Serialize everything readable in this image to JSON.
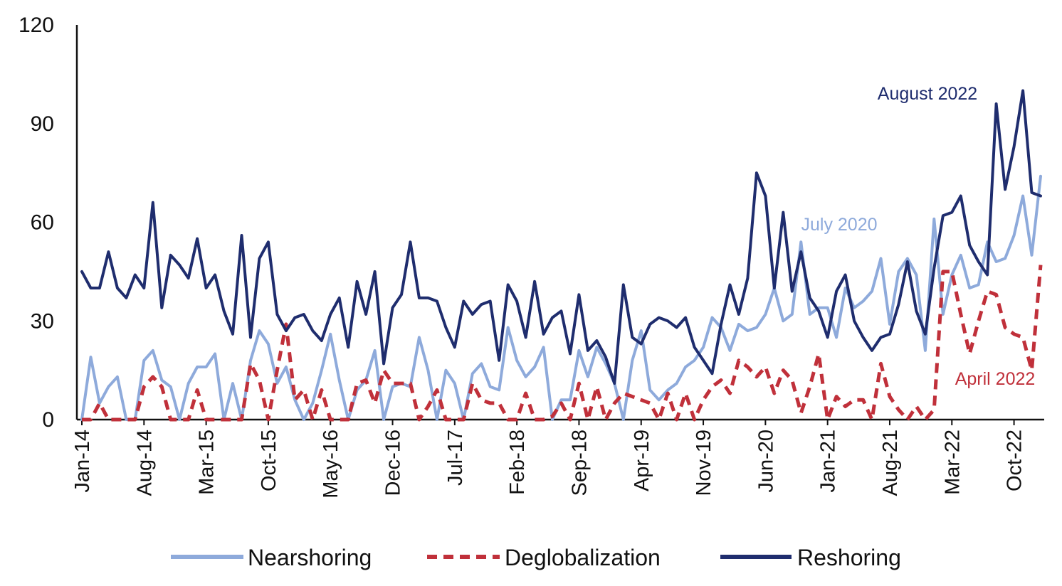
{
  "chart_data": {
    "type": "line",
    "title": "",
    "xlabel": "",
    "ylabel": "",
    "ylim": [
      0,
      120
    ],
    "yticks": [
      0,
      30,
      60,
      90,
      120
    ],
    "x_tick_labels": [
      "Jan-14",
      "Aug-14",
      "Mar-15",
      "Oct-15",
      "May-16",
      "Dec-16",
      "Jul-17",
      "Feb-18",
      "Sep-18",
      "Apr-19",
      "Nov-19",
      "Jun-20",
      "Jan-21",
      "Aug-21",
      "Mar-22",
      "Oct-22"
    ],
    "x_tick_every_n_months": 7,
    "start_month": "Jan-14",
    "grid": false,
    "legend_position": "bottom",
    "series": [
      {
        "name": "Nearshoring",
        "color": "#8eaadb",
        "dash": "solid",
        "values": [
          0,
          19,
          5,
          10,
          13,
          0,
          0,
          18,
          21,
          12,
          10,
          0,
          11,
          16,
          16,
          20,
          0,
          11,
          0,
          18,
          27,
          23,
          11,
          16,
          6,
          0,
          5,
          15,
          26,
          12,
          0,
          9,
          12,
          21,
          0,
          10,
          11,
          10,
          25,
          15,
          0,
          15,
          11,
          0,
          14,
          17,
          10,
          9,
          28,
          18,
          13,
          16,
          22,
          0,
          6,
          6,
          21,
          13,
          22,
          17,
          11,
          0,
          18,
          27,
          9,
          6,
          9,
          11,
          16,
          18,
          22,
          31,
          28,
          21,
          29,
          27,
          28,
          32,
          40,
          30,
          32,
          54,
          32,
          34,
          34,
          25,
          40,
          34,
          36,
          39,
          49,
          29,
          45,
          49,
          44,
          21,
          61,
          32,
          44,
          50,
          40,
          41,
          54,
          48,
          49,
          56,
          68,
          50,
          74
        ]
      },
      {
        "name": "Deglobalization",
        "color": "#c0303a",
        "dash": "dashed",
        "values": [
          0,
          0,
          5,
          0,
          0,
          0,
          0,
          10,
          13,
          10,
          0,
          0,
          0,
          9,
          0,
          0,
          0,
          0,
          0,
          17,
          12,
          0,
          15,
          29,
          6,
          9,
          0,
          9,
          0,
          0,
          0,
          11,
          12,
          5,
          15,
          11,
          11,
          11,
          0,
          4,
          9,
          0,
          0,
          0,
          11,
          6,
          5,
          5,
          0,
          0,
          8,
          0,
          0,
          1,
          5,
          0,
          11,
          0,
          10,
          0,
          5,
          8,
          7,
          6,
          5,
          0,
          8,
          0,
          8,
          0,
          6,
          10,
          12,
          8,
          18,
          16,
          13,
          16,
          8,
          15,
          12,
          2,
          10,
          20,
          0,
          7,
          4,
          6,
          6,
          0,
          17,
          7,
          3,
          0,
          4,
          0,
          3,
          45,
          45,
          32,
          20,
          30,
          39,
          38,
          28,
          26,
          25,
          15,
          47
        ]
      },
      {
        "name": "Reshoring",
        "color": "#1f2d6e",
        "dash": "solid",
        "values": [
          45,
          40,
          40,
          51,
          40,
          37,
          44,
          40,
          66,
          34,
          50,
          47,
          43,
          55,
          40,
          44,
          33,
          26,
          56,
          25,
          49,
          54,
          32,
          27,
          31,
          32,
          27,
          24,
          32,
          37,
          22,
          42,
          32,
          45,
          17,
          34,
          38,
          54,
          37,
          37,
          36,
          28,
          22,
          36,
          32,
          35,
          36,
          18,
          41,
          36,
          25,
          42,
          26,
          31,
          33,
          20,
          38,
          21,
          24,
          19,
          11,
          41,
          25,
          23,
          29,
          31,
          30,
          28,
          31,
          22,
          18,
          14,
          29,
          41,
          32,
          43,
          75,
          68,
          40,
          63,
          39,
          51,
          37,
          33,
          25,
          39,
          44,
          30,
          25,
          21,
          25,
          26,
          35,
          48,
          33,
          26,
          46,
          62,
          63,
          68,
          53,
          48,
          44,
          96,
          70,
          83,
          100,
          69,
          68
        ]
      }
    ],
    "annotations": [
      {
        "text": "August 2022",
        "color": "#1f2d6e"
      },
      {
        "text": "July 2020",
        "color": "#8eaadb"
      },
      {
        "text": "April 2022",
        "color": "#c0303a"
      }
    ]
  }
}
